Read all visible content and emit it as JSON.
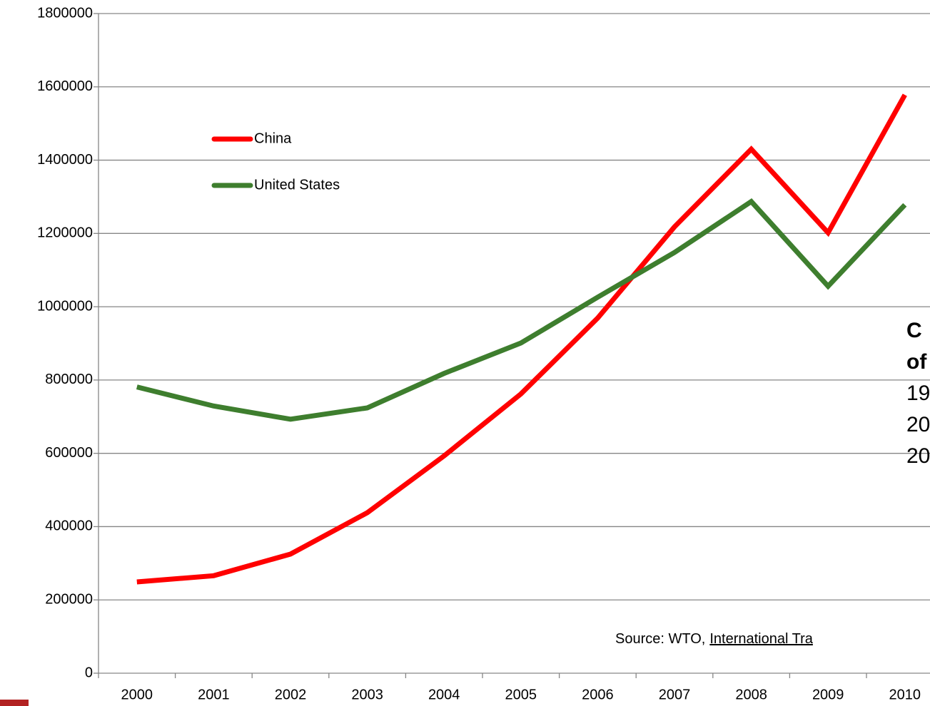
{
  "chart_data": {
    "type": "line",
    "categories": [
      "2000",
      "2001",
      "2002",
      "2003",
      "2004",
      "2005",
      "2006",
      "2007",
      "2008",
      "2009",
      "2010"
    ],
    "series": [
      {
        "name": "China",
        "color": "#ff0000",
        "values": [
          249000,
          266000,
          325000,
          438000,
          593000,
          762000,
          969000,
          1218000,
          1430000,
          1202000,
          1578000
        ]
      },
      {
        "name": "United States",
        "color": "#3e7e2e",
        "values": [
          781000,
          729000,
          693000,
          724000,
          818000,
          901000,
          1026000,
          1148000,
          1287000,
          1056000,
          1278000
        ]
      }
    ],
    "ylim": [
      0,
      1800000
    ],
    "yticks": [
      0,
      200000,
      400000,
      600000,
      800000,
      1000000,
      1200000,
      1400000,
      1600000,
      1800000
    ],
    "grid": true,
    "legend": "upper left",
    "annotation_lines": [
      "C",
      "of",
      "19",
      "20",
      "20"
    ],
    "source": {
      "text": "Source: WTO,",
      "link": "International Tra"
    }
  }
}
